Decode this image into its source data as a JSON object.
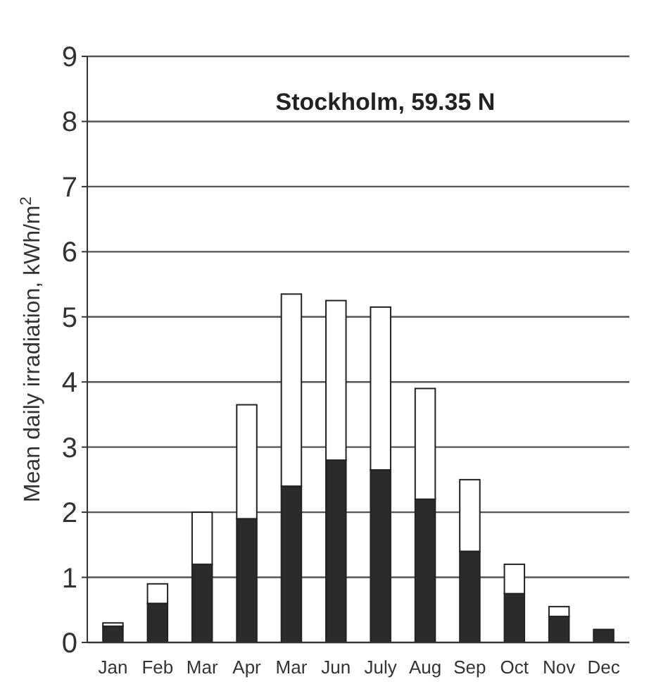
{
  "chart_data": {
    "type": "bar",
    "title": "Stockholm, 59.35 N",
    "ylabel": "Mean daily irradiation, kWh/m$^{2}$",
    "categories": [
      "Jan",
      "Feb",
      "Mar",
      "Apr",
      "Mar",
      "Jun",
      "July",
      "Aug",
      "Sep",
      "Oct",
      "Nov",
      "Dec"
    ],
    "stacked": true,
    "series": [
      {
        "color": "#2b2b2b",
        "values": [
          0.25,
          0.6,
          1.2,
          1.9,
          2.4,
          2.8,
          2.65,
          2.2,
          1.4,
          0.75,
          0.4,
          0.2
        ]
      },
      {
        "color": "#ffffff",
        "values": [
          0.05,
          0.3,
          0.8,
          1.75,
          2.95,
          2.45,
          2.5,
          1.7,
          1.1,
          0.45,
          0.15,
          0
        ]
      }
    ],
    "ylim": [
      0,
      9
    ],
    "yticks": [
      0,
      1,
      2,
      3,
      4,
      5,
      6,
      7,
      8,
      9
    ],
    "grid": "y"
  }
}
